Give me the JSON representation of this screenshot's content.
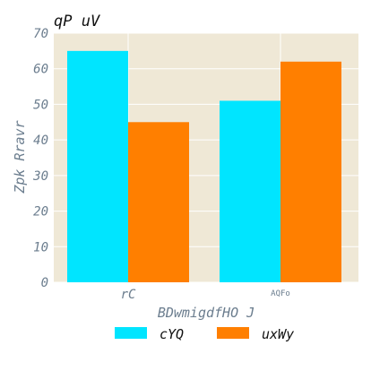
{
  "chart_data": {
    "type": "bar",
    "title": "qP uV",
    "xlabel": "BDwmigdfHO J",
    "ylabel": "Zpk Rravr",
    "categories": [
      "rC",
      "AQFo"
    ],
    "series": [
      {
        "name": "cYQ",
        "values": [
          65,
          51
        ],
        "color": "#00e5ff"
      },
      {
        "name": "uxWy",
        "values": [
          45,
          62
        ],
        "color": "#ff7f00"
      }
    ],
    "ylim": [
      0,
      70
    ],
    "yticks": [
      0,
      10,
      20,
      30,
      40,
      50,
      60,
      70
    ],
    "grid": true,
    "plot_background": "#efe8d6",
    "legend_position": "bottom"
  }
}
